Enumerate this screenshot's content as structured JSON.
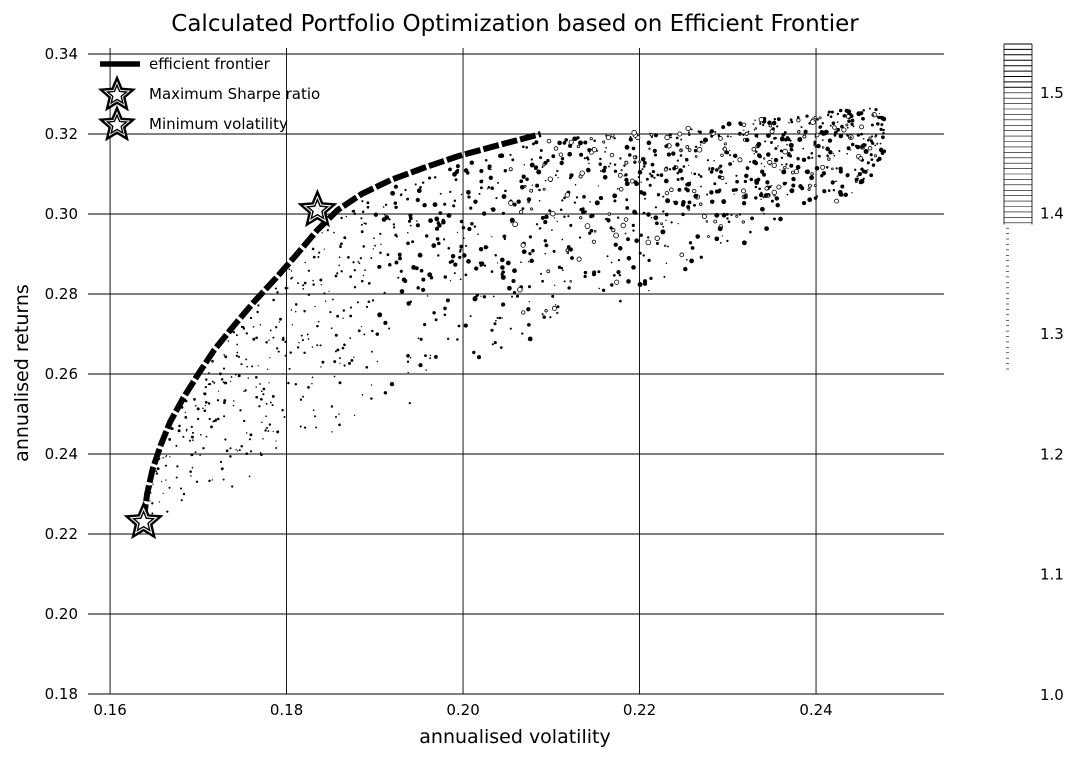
{
  "chart_data": {
    "type": "scatter",
    "title": "Calculated Portfolio Optimization based on Efficient Frontier",
    "xlabel": "annualised volatility",
    "ylabel": "annualised returns",
    "xlim": [
      0.1575,
      0.2545
    ],
    "ylim": [
      0.18,
      0.3415
    ],
    "xticks": [
      "0.16",
      "0.18",
      "0.20",
      "0.22",
      "0.24"
    ],
    "yticks": [
      "0.18",
      "0.20",
      "0.22",
      "0.24",
      "0.26",
      "0.28",
      "0.30",
      "0.32",
      "0.34"
    ],
    "grid": true,
    "legend_position": "top-left",
    "legend": [
      {
        "label": "efficient frontier",
        "marker": "line"
      },
      {
        "label": "Maximum Sharpe ratio",
        "marker": "star"
      },
      {
        "label": "Minimum volatility",
        "marker": "star"
      }
    ],
    "colorbar": {
      "ticks": [
        "1.0",
        "1.1",
        "1.2",
        "1.3",
        "1.4",
        "1.5"
      ],
      "range": [
        1.0,
        1.54
      ]
    },
    "efficient_frontier": {
      "x": [
        0.1638,
        0.1642,
        0.1648,
        0.1657,
        0.1668,
        0.1683,
        0.17,
        0.1718,
        0.174,
        0.1763,
        0.1788,
        0.1812,
        0.1835,
        0.1858,
        0.1885,
        0.1918,
        0.1955,
        0.1995,
        0.204,
        0.2088
      ],
      "y": [
        0.2235,
        0.23,
        0.236,
        0.242,
        0.248,
        0.254,
        0.26,
        0.266,
        0.272,
        0.278,
        0.284,
        0.29,
        0.296,
        0.301,
        0.305,
        0.3085,
        0.3115,
        0.3145,
        0.3172,
        0.32
      ]
    },
    "max_sharpe": {
      "x": 0.1835,
      "y": 0.301
    },
    "min_volatility": {
      "x": 0.1638,
      "y": 0.223
    },
    "portfolio_cloud": {
      "point_count": 1400,
      "seed": 7,
      "sharpe_range": [
        1.0,
        1.54
      ]
    }
  }
}
